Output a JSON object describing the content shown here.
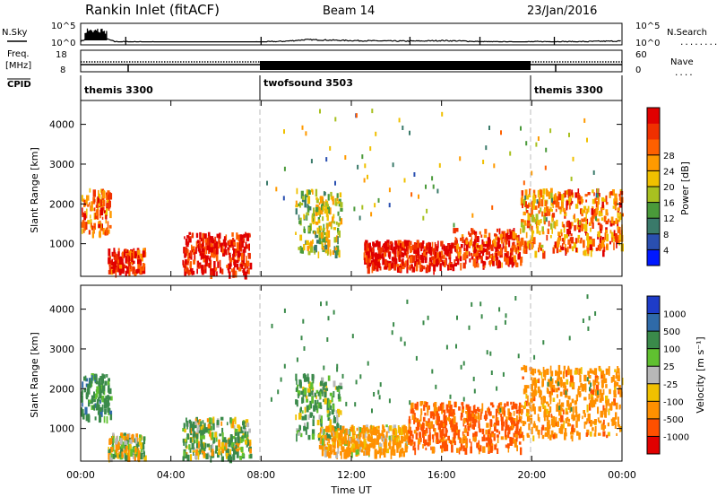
{
  "header": {
    "station": "Rankin Inlet (fitACF)",
    "beam": "Beam 14",
    "date": "23/Jan/2016"
  },
  "sky_panel": {
    "left_label": "N.Sky",
    "left_ticks": [
      "10^5",
      "10^0"
    ],
    "right_ticks": [
      "10^5",
      "10^0"
    ],
    "right_label": "N.Search",
    "right_line": "........."
  },
  "freq_panel": {
    "left_label_1": "Freq.",
    "left_label_2": "[MHz]",
    "left_ticks": [
      "18",
      "8"
    ],
    "right_ticks": [
      "60",
      "0"
    ],
    "right_label": "Nave",
    "right_line": "....",
    "cpid_label": "CPID"
  },
  "cpid": [
    {
      "label": "themis 3300",
      "start_hour": 0,
      "end_hour": 8
    },
    {
      "label": "twofsound 3503",
      "start_hour": 8,
      "end_hour": 20
    },
    {
      "label": "themis 3300",
      "start_hour": 20,
      "end_hour": 24
    }
  ],
  "power_panel": {
    "ylabel": "Slant Range [km]",
    "yticks": [
      "1000",
      "2000",
      "3000",
      "4000"
    ],
    "colorbar_label": "Power [dB]",
    "colorbar_ticks": [
      "4",
      "8",
      "12",
      "16",
      "20",
      "24",
      "28"
    ],
    "colorbar_colors": [
      "#0018ff",
      "#2a4fb0",
      "#3a7a6a",
      "#4a9a3a",
      "#a8c020",
      "#f0c000",
      "#ff9a00",
      "#ff6000",
      "#f03000",
      "#e00000"
    ]
  },
  "velocity_panel": {
    "ylabel": "Slant Range [km]",
    "yticks": [
      "1000",
      "2000",
      "3000",
      "4000"
    ],
    "colorbar_label": "Velocity [m s⁻¹]",
    "colorbar_ticks": [
      "1000",
      "500",
      "100",
      "25",
      "-25",
      "-100",
      "-500",
      "-1000"
    ],
    "colorbar_colors": [
      "#1e3cc8",
      "#2f6aa8",
      "#3a8a4a",
      "#60c030",
      "#b8b8b8",
      "#f0c000",
      "#ff9000",
      "#ff5000",
      "#e00000"
    ]
  },
  "xaxis": {
    "label": "Time UT",
    "ticks": [
      "00:00",
      "04:00",
      "08:00",
      "12:00",
      "16:00",
      "20:00",
      "00:00"
    ]
  },
  "chart_data": [
    {
      "type": "line",
      "name": "N.Sky",
      "x_hours": [
        0,
        0.5,
        1,
        1.5,
        2,
        3,
        4,
        5,
        6,
        7,
        8,
        9,
        10,
        11,
        12,
        13,
        14,
        15,
        16,
        17,
        18,
        19,
        20,
        21,
        22,
        23,
        24
      ],
      "y_log": [
        1.5,
        3.5,
        3.0,
        1.4,
        1.3,
        1.2,
        1.0,
        1.0,
        1.0,
        1.0,
        1.2,
        1.5,
        2.2,
        2.0,
        1.8,
        1.7,
        1.6,
        1.6,
        1.8,
        1.6,
        1.3,
        1.2,
        1.3,
        1.4,
        1.3,
        1.5,
        1.6
      ],
      "ylim_log": [
        0,
        5
      ]
    },
    {
      "type": "heatmap",
      "name": "Power",
      "xlim_hours": [
        0,
        24
      ],
      "ylim_km": [
        180,
        4600
      ],
      "blobs": [
        {
          "x": [
            0.0,
            1.3
          ],
          "y": [
            1300,
            2400
          ],
          "value": 22
        },
        {
          "x": [
            1.2,
            2.8
          ],
          "y": [
            300,
            900
          ],
          "value": 26
        },
        {
          "x": [
            4.5,
            7.5
          ],
          "y": [
            300,
            1300
          ],
          "value": 28
        },
        {
          "x": [
            9.5,
            11.5
          ],
          "y": [
            800,
            2400
          ],
          "value": 14
        },
        {
          "x": [
            12.5,
            16.5
          ],
          "y": [
            400,
            1100
          ],
          "value": 28
        },
        {
          "x": [
            16.5,
            19.5
          ],
          "y": [
            500,
            1400
          ],
          "value": 26
        },
        {
          "x": [
            19.5,
            21.0
          ],
          "y": [
            800,
            2400
          ],
          "value": 20
        },
        {
          "x": [
            21.0,
            24.0
          ],
          "y": [
            800,
            2400
          ],
          "value": 22
        }
      ]
    },
    {
      "type": "heatmap",
      "name": "Velocity",
      "xlim_hours": [
        0,
        24
      ],
      "ylim_km": [
        180,
        4600
      ],
      "blobs": [
        {
          "x": [
            0.0,
            1.3
          ],
          "y": [
            1300,
            2400
          ],
          "value": 300
        },
        {
          "x": [
            1.2,
            2.8
          ],
          "y": [
            300,
            900
          ],
          "value": 0
        },
        {
          "x": [
            4.5,
            7.5
          ],
          "y": [
            300,
            1300
          ],
          "value": 80
        },
        {
          "x": [
            9.5,
            11.5
          ],
          "y": [
            800,
            2400
          ],
          "value": 150
        },
        {
          "x": [
            10.5,
            14.5
          ],
          "y": [
            400,
            1100
          ],
          "value": -200
        },
        {
          "x": [
            14.5,
            19.5
          ],
          "y": [
            500,
            1700
          ],
          "value": -600
        },
        {
          "x": [
            19.5,
            24.0
          ],
          "y": [
            800,
            2600
          ],
          "value": -300
        }
      ]
    }
  ]
}
